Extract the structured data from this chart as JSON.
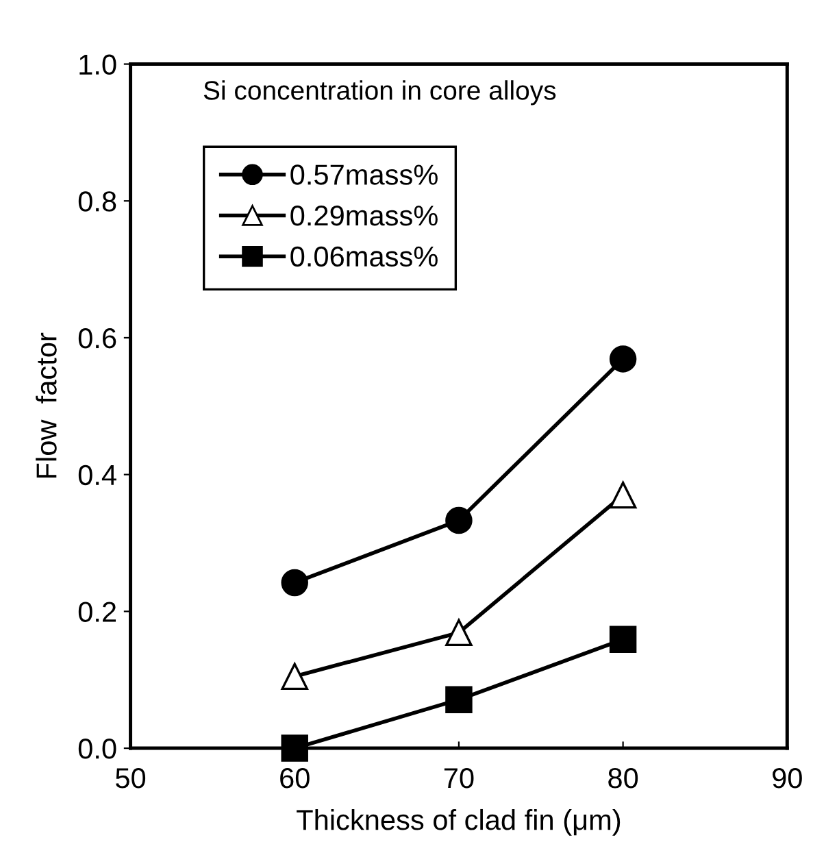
{
  "chart_data": {
    "type": "line",
    "xlabel": "Thickness of clad fin (μm)",
    "ylabel": "Flow  factor",
    "legend_title": "Si concentration in core alloys",
    "x": [
      60,
      70,
      80
    ],
    "series": [
      {
        "name": "0.57mass%",
        "color": "#000000",
        "marker": "circle",
        "values": [
          0.242,
          0.333,
          0.569
        ]
      },
      {
        "name": "0.29mass%",
        "color": "#000000",
        "marker": "triangle",
        "values": [
          0.105,
          0.169,
          0.37
        ]
      },
      {
        "name": "0.06mass%",
        "color": "#000000",
        "marker": "square",
        "values": [
          0.0,
          0.071,
          0.159
        ]
      }
    ],
    "xlim": [
      50,
      90
    ],
    "xticks": [
      50,
      60,
      70,
      80,
      90
    ],
    "ylim": [
      0,
      1
    ],
    "yticks": [
      {
        "value": 0,
        "label": "0.0"
      },
      {
        "value": 0.2,
        "label": "0.2"
      },
      {
        "value": 0.4,
        "label": "0.4"
      },
      {
        "value": 0.6,
        "label": "0.6"
      },
      {
        "value": 0.8,
        "label": "0.8"
      },
      {
        "value": 1,
        "label": "1.0"
      }
    ],
    "grid": false,
    "legend": "top left"
  }
}
